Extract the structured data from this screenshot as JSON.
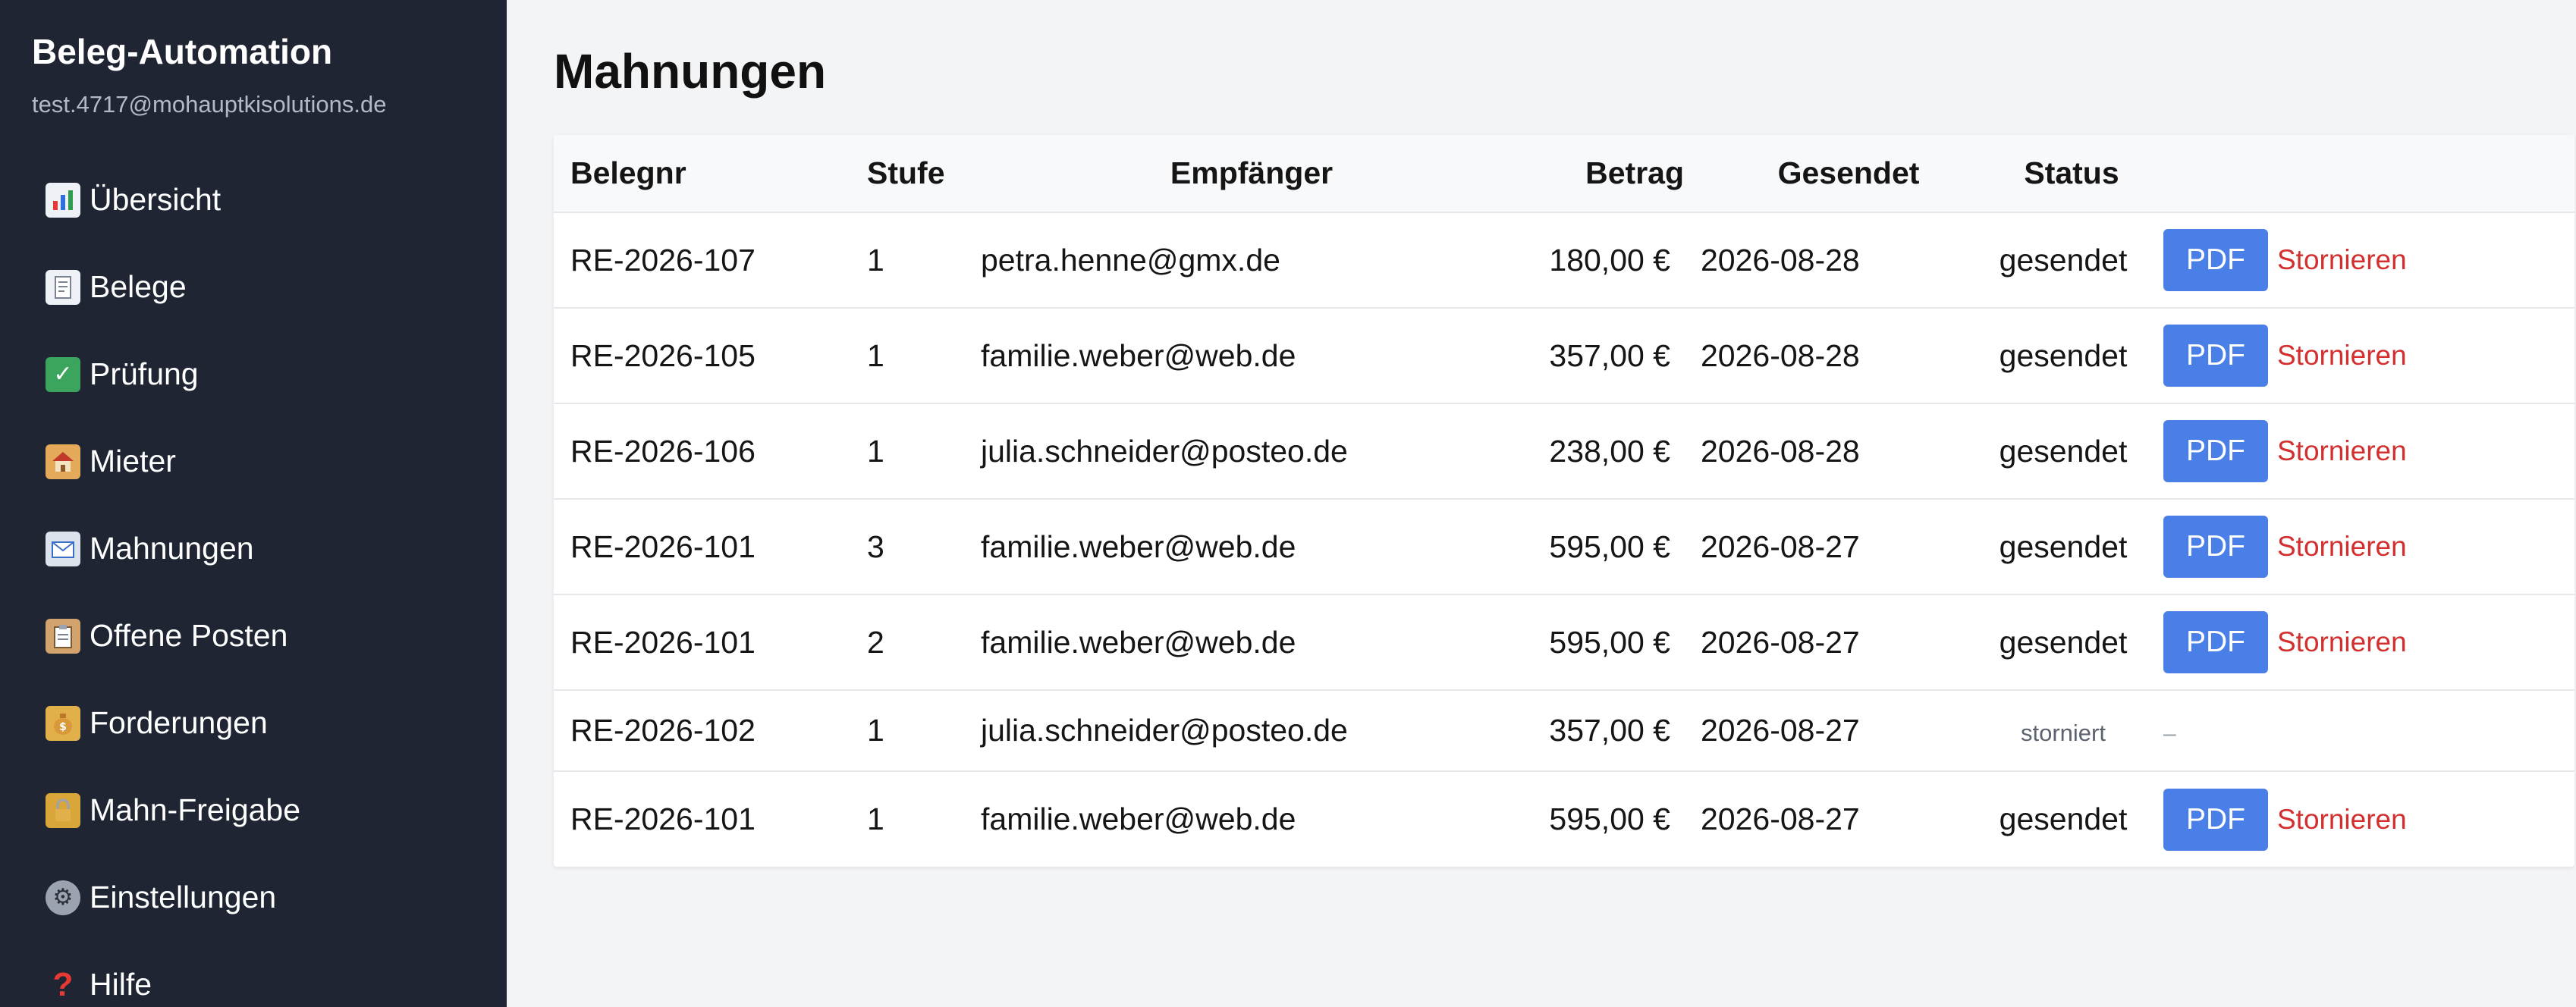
{
  "sidebar": {
    "brand": "Beleg-Automation",
    "email": "test.4717@mohauptkisolutions.de",
    "items": [
      {
        "label": "Übersicht",
        "icon": "chart-icon"
      },
      {
        "label": "Belege",
        "icon": "receipt-icon"
      },
      {
        "label": "Prüfung",
        "icon": "checkmark-icon"
      },
      {
        "label": "Mieter",
        "icon": "house-icon"
      },
      {
        "label": "Mahnungen",
        "icon": "mail-icon"
      },
      {
        "label": "Offene Posten",
        "icon": "clipboard-icon"
      },
      {
        "label": "Forderungen",
        "icon": "money-bag-icon"
      },
      {
        "label": "Mahn-Freigabe",
        "icon": "lock-icon"
      },
      {
        "label": "Einstellungen",
        "icon": "gear-icon"
      },
      {
        "label": "Hilfe",
        "icon": "question-icon"
      }
    ]
  },
  "main": {
    "title": "Mahnungen",
    "columns": {
      "belegnr": "Belegnr",
      "stufe": "Stufe",
      "empfaenger": "Empfänger",
      "betrag": "Betrag",
      "gesendet": "Gesendet",
      "status": "Status"
    },
    "actions": {
      "pdf": "PDF",
      "cancel": "Stornieren",
      "none": "–"
    },
    "rows": [
      {
        "belegnr": "RE-2026-107",
        "stufe": "1",
        "empfaenger": "petra.henne@gmx.de",
        "betrag": "180,00 €",
        "gesendet": "2026-08-28",
        "status": "gesendet"
      },
      {
        "belegnr": "RE-2026-105",
        "stufe": "1",
        "empfaenger": "familie.weber@web.de",
        "betrag": "357,00 €",
        "gesendet": "2026-08-28",
        "status": "gesendet"
      },
      {
        "belegnr": "RE-2026-106",
        "stufe": "1",
        "empfaenger": "julia.schneider@posteo.de",
        "betrag": "238,00 €",
        "gesendet": "2026-08-28",
        "status": "gesendet"
      },
      {
        "belegnr": "RE-2026-101",
        "stufe": "3",
        "empfaenger": "familie.weber@web.de",
        "betrag": "595,00 €",
        "gesendet": "2026-08-27",
        "status": "gesendet"
      },
      {
        "belegnr": "RE-2026-101",
        "stufe": "2",
        "empfaenger": "familie.weber@web.de",
        "betrag": "595,00 €",
        "gesendet": "2026-08-27",
        "status": "gesendet"
      },
      {
        "belegnr": "RE-2026-102",
        "stufe": "1",
        "empfaenger": "julia.schneider@posteo.de",
        "betrag": "357,00 €",
        "gesendet": "2026-08-27",
        "status": "storniert"
      },
      {
        "belegnr": "RE-2026-101",
        "stufe": "1",
        "empfaenger": "familie.weber@web.de",
        "betrag": "595,00 €",
        "gesendet": "2026-08-27",
        "status": "gesendet"
      }
    ]
  }
}
